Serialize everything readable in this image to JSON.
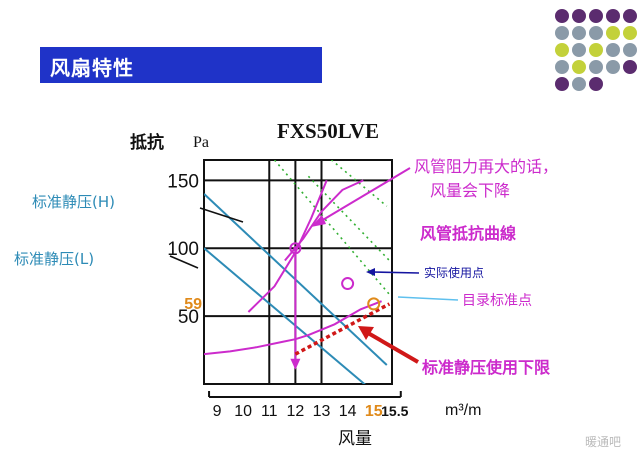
{
  "slide": {
    "title": "风扇特性"
  },
  "colors": {
    "title_bar": "#1f33c8",
    "blue_curve": "#2d8bb6",
    "magenta": "#cc2bcc",
    "green_dotted": "#33b033",
    "orange": "#e08a1a",
    "dashed_red": "#d01818",
    "navy": "#1515a0",
    "light_blue": "#5fc0ee"
  },
  "decor": {
    "dot_colors": [
      "#5b2c6f",
      "#5b2c6f",
      "#5b2c6f",
      "#5b2c6f",
      "#5b2c6f",
      "#8a9aa8",
      "#8a9aa8",
      "#8a9aa8",
      "#c3d13a",
      "#c3d13a",
      "#c3d13a",
      "#8a9aa8",
      "#c3d13a",
      "#8a9aa8",
      "#8a9aa8",
      "#8a9aa8",
      "#c3d13a",
      "#8a9aa8",
      "#8a9aa8",
      "#5b2c6f",
      "#5b2c6f",
      "#8a9aa8",
      "#5b2c6f"
    ]
  },
  "chart_data": {
    "type": "line",
    "title": "FXS50LVE",
    "ylabel": "抵抗",
    "yunit": "Pa",
    "xlabel": "风量",
    "xunit": "m³/m",
    "xlim": [
      8.5,
      15.7
    ],
    "ylim": [
      0,
      165
    ],
    "x_ticks": [
      9,
      10,
      11,
      12,
      13,
      14,
      15,
      15.5
    ],
    "x_tick_labels": [
      "9",
      "10",
      "11",
      "12",
      "13",
      "14",
      "15",
      "15.5"
    ],
    "y_ticks": [
      50,
      100,
      150
    ],
    "y_tick_labels": [
      "50",
      "100",
      "150"
    ],
    "y_extra_label": {
      "value": 59,
      "text": "59"
    },
    "highlight_x_tick": "15",
    "series": [
      {
        "style": "fan",
        "x": [
          8.5,
          15.5
        ],
        "y": [
          140,
          14
        ]
      },
      {
        "style": "fan",
        "x": [
          8.5,
          15.5
        ],
        "y": [
          100,
          -14
        ]
      },
      {
        "style": "dotted",
        "x": [
          11.2,
          15.6
        ],
        "y": [
          165,
          66
        ]
      },
      {
        "style": "dotted",
        "x": [
          12.5,
          15.6
        ],
        "y": [
          153,
          91
        ]
      },
      {
        "style": "dotted",
        "x": [
          13.2,
          15.5
        ],
        "y": [
          168,
          131
        ]
      },
      {
        "style": "duct",
        "x": [
          8.5,
          9.5,
          10.5,
          11.5,
          12,
          12.5,
          13.5,
          14.5,
          15.3
        ],
        "y": [
          22,
          24,
          27,
          31,
          33,
          36,
          44,
          55,
          61
        ]
      },
      {
        "style": "duct",
        "x": [
          10.2,
          11.2,
          12,
          12.6,
          13.2
        ],
        "y": [
          53,
          72,
          97,
          122,
          150
        ]
      },
      {
        "style": "duct",
        "x": [
          11.6,
          12.3,
          13,
          13.8,
          14.6
        ],
        "y": [
          91,
          107,
          127,
          143,
          150
        ]
      },
      {
        "style": "arrow",
        "x": [
          12,
          12
        ],
        "y": [
          100,
          12
        ]
      }
    ],
    "points": [
      {
        "x": 12,
        "y": 100,
        "kind": "magenta-circle"
      },
      {
        "x": 14,
        "y": 74,
        "kind": "open-circle"
      },
      {
        "x": 15,
        "y": 59,
        "kind": "orange-circle"
      }
    ],
    "labels": {
      "static_h": "标准静压(H)",
      "static_l": "标准静压(L)",
      "duct_resist_line1": "风管阻力再大的话，",
      "duct_resist_line2": "风量会下降",
      "duct_curve": "风管抵抗曲線",
      "actual_point": "实际使用点",
      "catalog_point": "目录标准点",
      "lower_limit": "标准静压使用下限"
    }
  },
  "watermark": "暖通吧"
}
